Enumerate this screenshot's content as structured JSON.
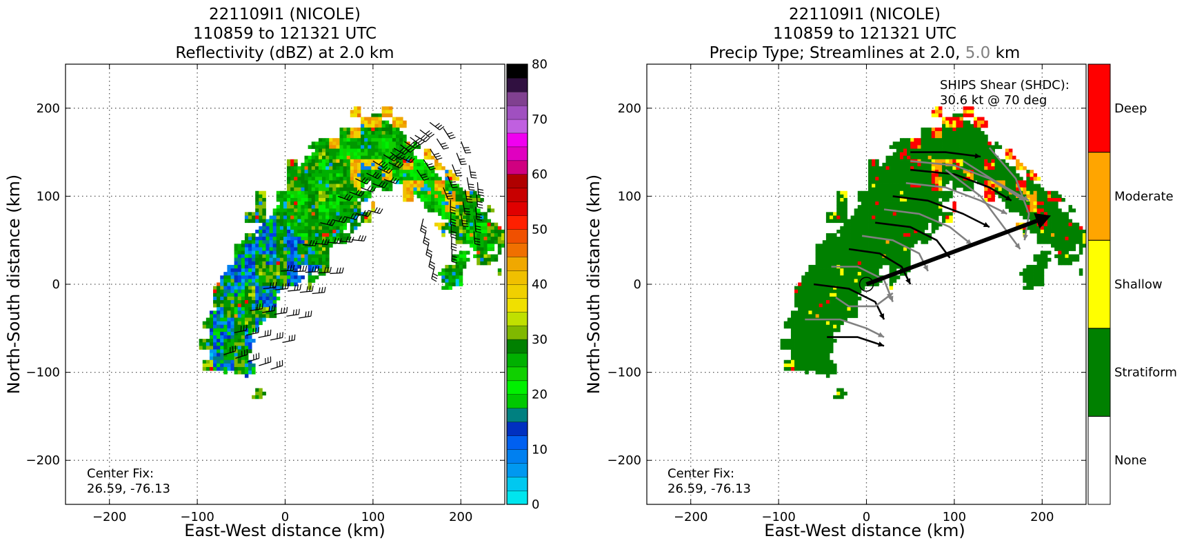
{
  "left_panel": {
    "title_line1": "221109I1 (NICOLE)",
    "title_line2": "110859 to 121321 UTC",
    "title_line3": "Reflectivity (dBZ) at 2.0 km",
    "xlabel": "East-West distance (km)",
    "ylabel": "North-South distance (km)",
    "center_fix_label": "Center Fix:",
    "center_fix_value": "26.59, -76.13"
  },
  "right_panel": {
    "title_line1": "221109I1 (NICOLE)",
    "title_line2": "110859 to 121321 UTC",
    "title_line3_a": "Precip Type; Streamlines at 2.0,",
    "title_line3_b": "5.0",
    "title_line3_c": "km",
    "xlabel": "East-West distance (km)",
    "ylabel": "North-South distance (km)",
    "center_fix_label": "Center Fix:",
    "center_fix_value": "26.59, -76.13",
    "shear_label": "SHIPS Shear (SHDC):",
    "shear_value": "30.6 kt @ 70 deg"
  },
  "colors": {
    "dbz_scale": [
      "#00e5ee",
      "#00c8f0",
      "#00b0f0",
      "#0098f0",
      "#0080f0",
      "#0060f0",
      "#0040e0",
      "#0030c0",
      "#008080",
      "#00c800",
      "#00e000",
      "#00f000",
      "#10d000",
      "#00b000",
      "#009800",
      "#008000",
      "#80b800",
      "#c0e000",
      "#ffff00",
      "#f0e000",
      "#f0d000",
      "#f0c000",
      "#f0a800",
      "#f09000",
      "#f07000",
      "#f05000",
      "#ff2000",
      "#ff0000",
      "#e00000",
      "#c80000",
      "#b00000",
      "#c00040",
      "#d00080",
      "#e000c0",
      "#f000f0",
      "#e040f0",
      "#c060e0",
      "#a050c0",
      "#804090",
      "#502060",
      "#301040",
      "#000000"
    ],
    "precip_classes": [
      "#ffffff",
      "#008000",
      "#ffff00",
      "#ffa500",
      "#ff0000"
    ],
    "shear_arrow": "#000000",
    "streamline_upper": "#808080",
    "streamline_lower": "#000000"
  },
  "chart_data": [
    {
      "type": "heatmap",
      "title": "221109I1 (NICOLE) 110859 to 121321 UTC Reflectivity (dBZ) at 2.0 km",
      "xlabel": "East-West distance (km)",
      "ylabel": "North-South distance (km)",
      "xlim": [
        -250,
        250
      ],
      "ylim": [
        -250,
        250
      ],
      "xticks": [
        -200,
        -100,
        0,
        100,
        200
      ],
      "yticks": [
        -200,
        -100,
        0,
        100,
        200
      ],
      "grid": true,
      "colorbar": {
        "label_values": [
          0,
          10,
          20,
          30,
          40,
          50,
          60,
          70,
          80
        ],
        "range": [
          0,
          80
        ],
        "levels": 32
      },
      "rain_band_axis": [
        [
          -70,
          -80
        ],
        [
          -55,
          -35
        ],
        [
          -30,
          10
        ],
        [
          -5,
          40
        ],
        [
          25,
          75
        ],
        [
          60,
          125
        ],
        [
          100,
          155
        ],
        [
          155,
          120
        ],
        [
          200,
          80
        ],
        [
          225,
          50
        ]
      ],
      "center_fix": "26.59, -76.13"
    },
    {
      "type": "heatmap",
      "title": "221109I1 (NICOLE) 110859 to 121321 UTC Precip Type; Streamlines at 2.0, 5.0 km",
      "xlabel": "East-West distance (km)",
      "ylabel": "North-South distance (km)",
      "xlim": [
        -250,
        250
      ],
      "ylim": [
        -250,
        250
      ],
      "xticks": [
        -200,
        -100,
        0,
        100,
        200
      ],
      "yticks": [
        -200,
        -100,
        0,
        100,
        200
      ],
      "grid": true,
      "legend_categories": [
        "None",
        "Stratiform",
        "Shallow",
        "Moderate",
        "Deep"
      ],
      "shear": {
        "speed_kt": 30.6,
        "direction_deg": 70,
        "arrow_tip": [
          210,
          78
        ]
      },
      "center_fix": "26.59, -76.13"
    }
  ]
}
